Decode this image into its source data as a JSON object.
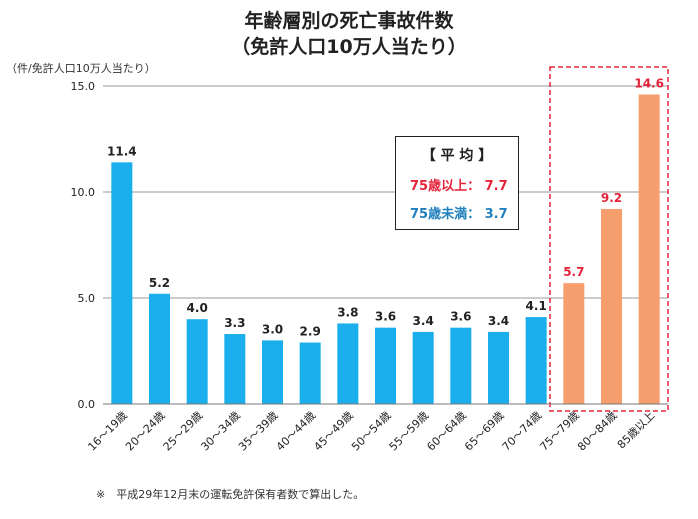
{
  "title_line1": "年齢層別の死亡事故件数",
  "title_line2": "（免許人口10万人当たり）",
  "unit_label": "（件/免許人口10万人当たり）",
  "footnote": "※　平成29年12月末の運転免許保有者数で算出した。",
  "average_box": {
    "heading": "【 平 均 】",
    "over75": "75歳以上：  7.7",
    "under75": "75歳未満：  3.7"
  },
  "colors": {
    "bar_under75": "#1aaeec",
    "bar_over75": "#f79e6e",
    "label_over75": "#e5233a",
    "highlight_border": "#e5233a"
  },
  "chart_data": {
    "type": "bar",
    "title": "年齢層別の死亡事故件数（免許人口10万人当たり）",
    "ylabel": "（件/免許人口10万人当たり）",
    "xlabel": "",
    "ylim": [
      0,
      15
    ],
    "yticks": [
      "0.0",
      "5.0",
      "10.0",
      "15.0"
    ],
    "grid": true,
    "categories": [
      "16～19歳",
      "20～24歳",
      "25～29歳",
      "30～34歳",
      "35～39歳",
      "40～44歳",
      "45～49歳",
      "50～54歳",
      "55～59歳",
      "60～64歳",
      "65～69歳",
      "70～74歳",
      "75～79歳",
      "80～84歳",
      "85歳以上"
    ],
    "values": [
      11.4,
      5.2,
      4.0,
      3.3,
      3.0,
      2.9,
      3.8,
      3.6,
      3.4,
      3.6,
      3.4,
      4.1,
      5.7,
      9.2,
      14.6
    ],
    "value_labels": [
      "11.4",
      "5.2",
      "4.0",
      "3.3",
      "3.0",
      "2.9",
      "3.8",
      "3.6",
      "3.4",
      "3.6",
      "3.4",
      "4.1",
      "5.7",
      "9.2",
      "14.6"
    ],
    "highlighted_categories": [
      "75～79歳",
      "80～84歳",
      "85歳以上"
    ]
  }
}
